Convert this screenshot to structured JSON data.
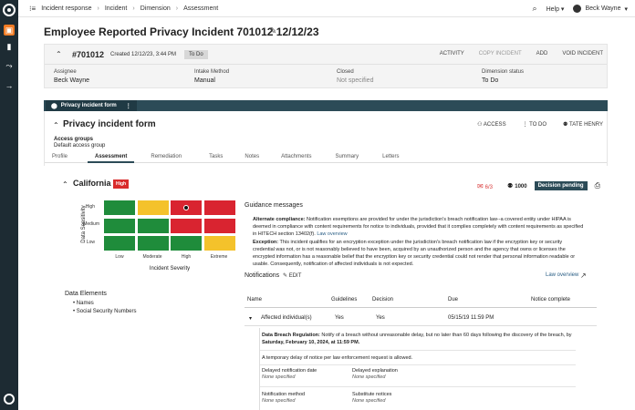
{
  "topbar": {
    "breadcrumbs": [
      "Incident response",
      "Incident",
      "Dimension",
      "Assessment"
    ],
    "help": "Help",
    "user": "Beck Wayne"
  },
  "page": {
    "title": "Employee Reported Privacy Incident 701012 12/12/23"
  },
  "incident": {
    "number": "#701012",
    "created": "Created 12/12/23, 3:44 PM",
    "status_badge": "To Do",
    "actions": [
      "ACTIVITY",
      "COPY INCIDENT",
      "ADD",
      "VOID INCIDENT"
    ],
    "fields": [
      {
        "label": "Assignee",
        "value": "Beck Wayne"
      },
      {
        "label": "Intake Method",
        "value": "Manual"
      },
      {
        "label": "Closed",
        "value": "Not specified"
      },
      {
        "label": "Dimension status",
        "value": "To Do"
      }
    ]
  },
  "form": {
    "tab_label": "Privacy incident form",
    "title": "Privacy incident form",
    "actions": [
      "ACCESS",
      "TO DO",
      "TATE HENRY"
    ],
    "access_groups_label": "Access groups",
    "access_groups_value": "Default access group",
    "tabs": [
      "Profile",
      "Assessment",
      "Remediation",
      "Tasks",
      "Notes",
      "Attachments",
      "Summary",
      "Letters"
    ]
  },
  "assessment": {
    "jurisdiction": "California",
    "risk_badge": "High",
    "notice_count": "6/3",
    "user_count": "1000",
    "decision_badge": "Decision pending",
    "matrix": {
      "rows": [
        "High",
        "Medium",
        "Low"
      ],
      "columns": [
        "Low",
        "Moderate",
        "High",
        "Extreme"
      ],
      "x_axis": "Incident Severity",
      "y_axis": "Data Sensitivity",
      "colors": [
        [
          "g",
          "y",
          "r",
          "r"
        ],
        [
          "g",
          "g",
          "r",
          "r"
        ],
        [
          "g",
          "g",
          "g",
          "y"
        ]
      ],
      "selected": {
        "row": "High",
        "column": "High"
      }
    },
    "data_elements_title": "Data Elements",
    "data_elements": [
      "Names",
      "Social Security Numbers"
    ]
  },
  "guidance": {
    "title": "Guidance messages",
    "alt_label": "Alternate compliance:",
    "alt_text": " Notification exemptions are provided for under the jurisdiction's breach notification law--a covered entity under HIPAA is deemed in compliance with content requirements for notice to individuals, provided that it complies completely with content requirements as specified in HITECH section 13402(f).",
    "alt_link": "Law overview",
    "exc_label": "Exception:",
    "exc_text": " This incident qualifies for an encryption exception under the jurisdiction's breach notification law if the encryption key or security credential was not, or is not reasonably believed to have been, acquired by an unauthorized person and the agency that owns or licenses the encrypted information has a reasonable belief that the encryption key or security credential could not render that personal information readable or usable. Consequently, notification of affected individuals is not expected."
  },
  "notifications": {
    "title": "Notifications",
    "edit": "EDIT",
    "law_overview": "Law overview",
    "headers": [
      "Name",
      "Guidelines",
      "Decision",
      "Due",
      "Notice complete"
    ],
    "row": {
      "name": "Affected individual(s)",
      "guidelines": "Yes",
      "decision": "Yes",
      "due": "05/15/19 11:59 PM"
    },
    "detail": {
      "reg_label": "Data Breach Regulation:",
      "reg_text": " Notify of a breach without unreasonable delay, but no later than 60 days following the discovery of the breach, by ",
      "reg_date": "Saturday, February 10, 2024, at 11:59 PM.",
      "note": "A temporary delay of notice per law enforcement request is allowed.",
      "fields": [
        {
          "label": "Delayed notification date",
          "value": "None specified"
        },
        {
          "label": "Delayed explanation",
          "value": "None specified"
        },
        {
          "label": "Notification method",
          "value": "None specified"
        },
        {
          "label": "Substitute notices",
          "value": "None specified"
        }
      ]
    }
  }
}
